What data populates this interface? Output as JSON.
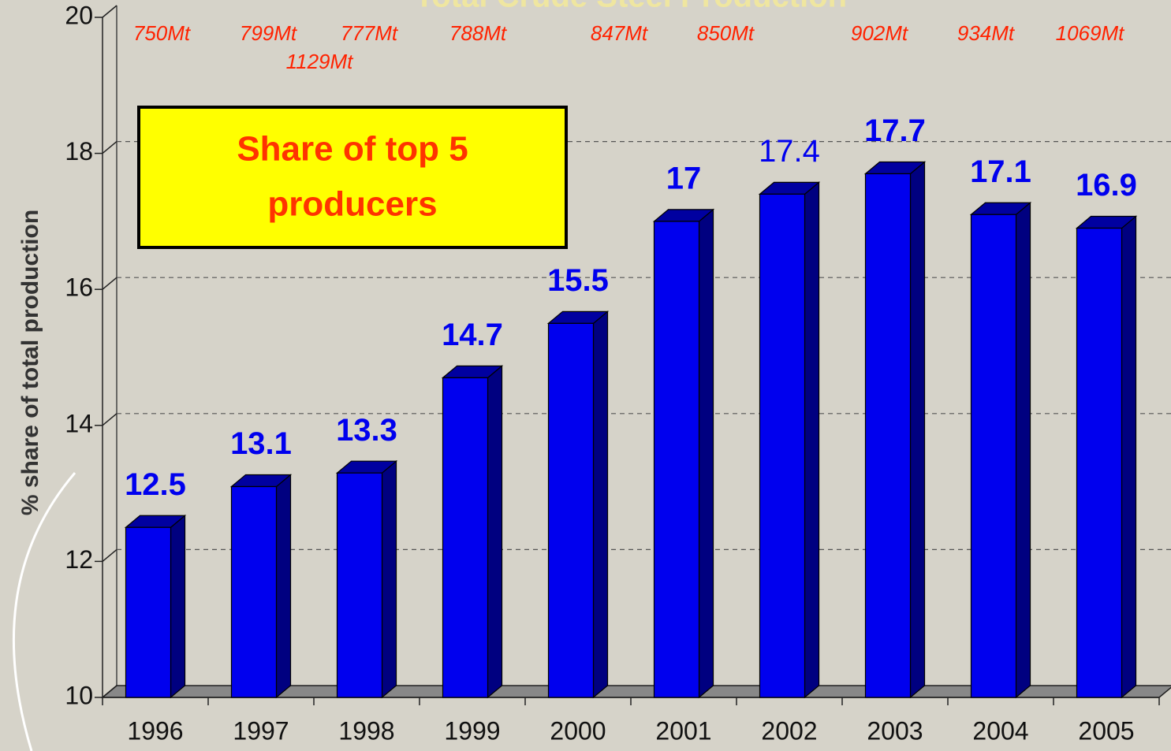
{
  "chart_data": {
    "type": "bar3d",
    "title": "Total Crude Steel Production",
    "y_label": "% share of total production",
    "box_text": [
      "Share of top 5",
      "producers"
    ],
    "annotations": [
      "750Mt",
      "799Mt",
      "1129Mt",
      "777Mt",
      "788Mt",
      "847Mt",
      "850Mt",
      "902Mt",
      "934Mt",
      "1069Mt"
    ],
    "categories": [
      "1996",
      "1997",
      "1998",
      "1999",
      "2000",
      "2001",
      "2002",
      "2003",
      "2004",
      "2005"
    ],
    "values": [
      12.5,
      13.1,
      13.3,
      14.7,
      15.5,
      17,
      17.4,
      17.7,
      17.1,
      16.9
    ],
    "color": "#0000ee",
    "ylim": [
      10,
      20
    ],
    "yticks": [
      10,
      12,
      14,
      16,
      18,
      20
    ],
    "grid": true
  }
}
